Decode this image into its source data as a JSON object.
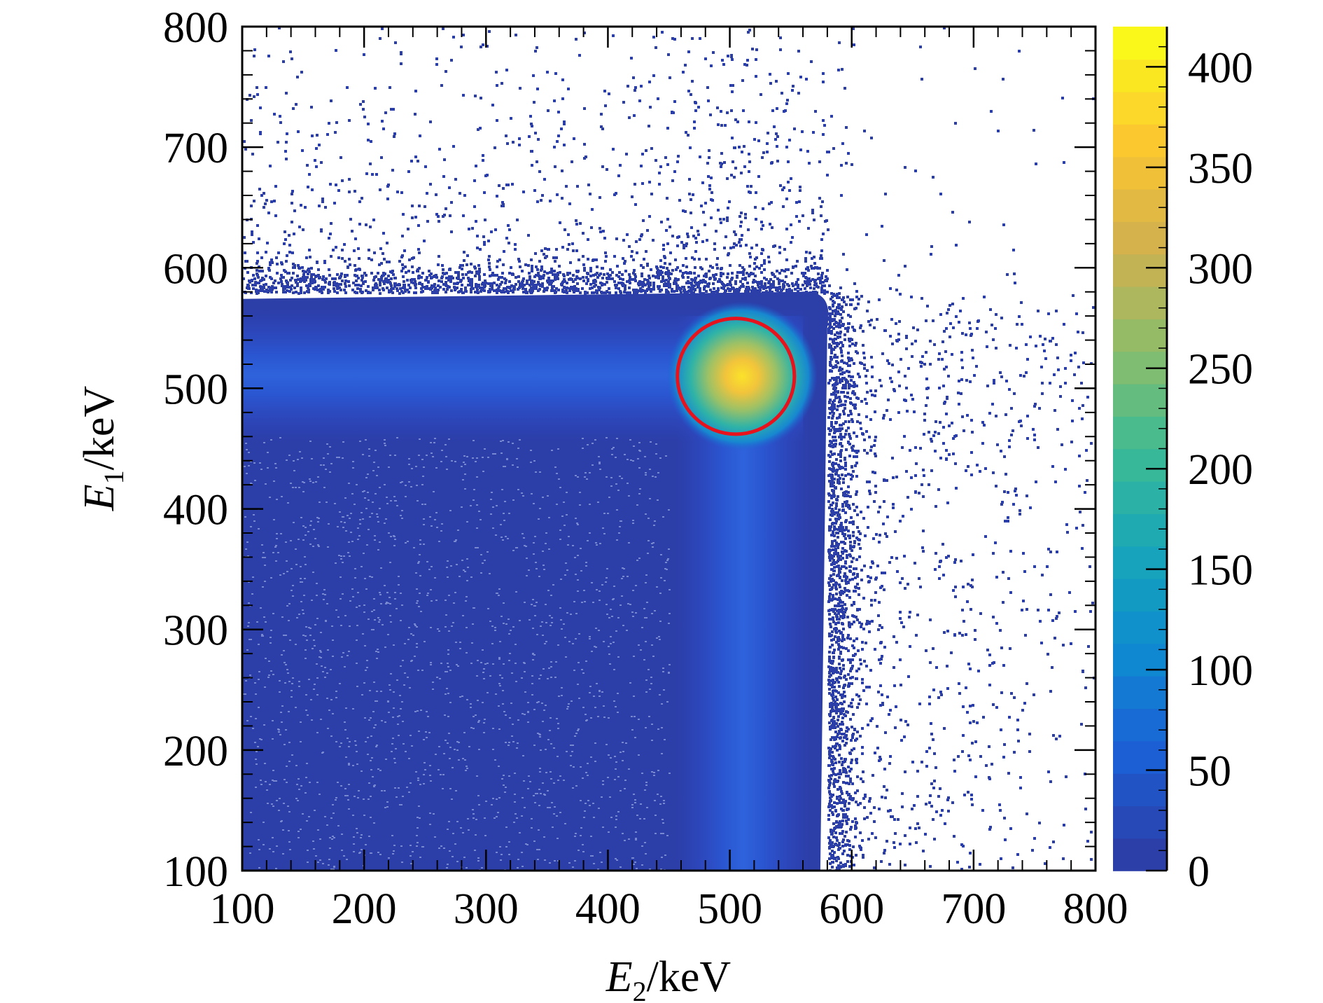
{
  "chart_data": {
    "type": "heatmap",
    "xlabel": {
      "var": "E",
      "sub": "2",
      "unit": "/keV"
    },
    "ylabel": {
      "var": "E",
      "sub": "1",
      "unit": "/keV"
    },
    "xlim": [
      100,
      800
    ],
    "ylim": [
      100,
      800
    ],
    "xticks": [
      "100",
      "200",
      "300",
      "400",
      "500",
      "600",
      "700",
      "800"
    ],
    "yticks": [
      "100",
      "200",
      "300",
      "400",
      "500",
      "600",
      "700",
      "800"
    ],
    "colorbar": {
      "range": [
        0,
        420
      ],
      "ticks": [
        "0",
        "50",
        "100",
        "150",
        "200",
        "250",
        "300",
        "350",
        "400"
      ],
      "colors": [
        "#2c3ea8",
        "#1b5fd6",
        "#0f8ad1",
        "#17a6b8",
        "#3dbb93",
        "#8ebd6a",
        "#d2b04e",
        "#fbc631",
        "#faf71a"
      ]
    },
    "peak": {
      "e2": 510,
      "e1": 510,
      "max_counts": 420
    },
    "bands": [
      {
        "orientation": "horizontal",
        "e1_center": 511,
        "e2_range": [
          100,
          580
        ]
      },
      {
        "orientation": "vertical",
        "e2_center": 511,
        "e1_range": [
          100,
          580
        ]
      }
    ],
    "annotations": [
      {
        "type": "circle",
        "e2_center": 505,
        "e1_center": 510,
        "radius_kev": 48,
        "color": "#e8121c"
      }
    ],
    "grid": false
  }
}
